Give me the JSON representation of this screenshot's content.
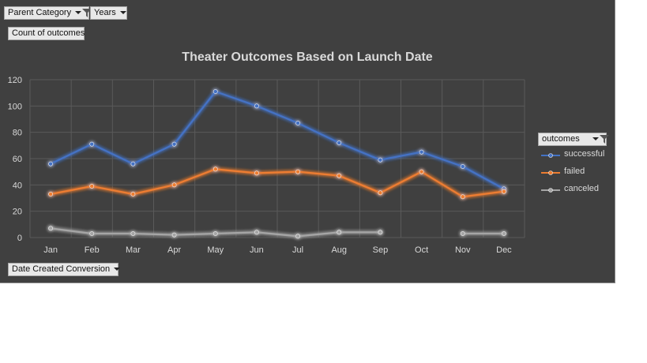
{
  "filters": {
    "parent_category": "Parent Category",
    "years": "Years",
    "values_field": "Count of outcomes",
    "axis_field": "Date Created Conversion",
    "legend_field": "outcomes"
  },
  "colors": {
    "background": "#404040",
    "successful": "#4472c4",
    "failed": "#ed7d31",
    "canceled": "#a5a5a5"
  },
  "chart_data": {
    "type": "line",
    "title": "Theater Outcomes Based on Launch Date",
    "xlabel": "",
    "ylabel": "",
    "ylim": [
      0,
      120
    ],
    "yticks": [
      0,
      20,
      40,
      60,
      80,
      100,
      120
    ],
    "grid": true,
    "legend_position": "right",
    "categories": [
      "Jan",
      "Feb",
      "Mar",
      "Apr",
      "May",
      "Jun",
      "Jul",
      "Aug",
      "Sep",
      "Oct",
      "Nov",
      "Dec"
    ],
    "series": [
      {
        "name": "successful",
        "color": "#4472c4",
        "values": [
          56,
          71,
          56,
          71,
          111,
          100,
          87,
          72,
          59,
          65,
          54,
          37
        ]
      },
      {
        "name": "failed",
        "color": "#ed7d31",
        "values": [
          33,
          39,
          33,
          40,
          52,
          49,
          50,
          47,
          34,
          50,
          31,
          35
        ]
      },
      {
        "name": "canceled",
        "color": "#a5a5a5",
        "values": [
          7,
          3,
          3,
          2,
          3,
          4,
          1,
          4,
          4,
          null,
          3,
          3
        ]
      }
    ]
  }
}
